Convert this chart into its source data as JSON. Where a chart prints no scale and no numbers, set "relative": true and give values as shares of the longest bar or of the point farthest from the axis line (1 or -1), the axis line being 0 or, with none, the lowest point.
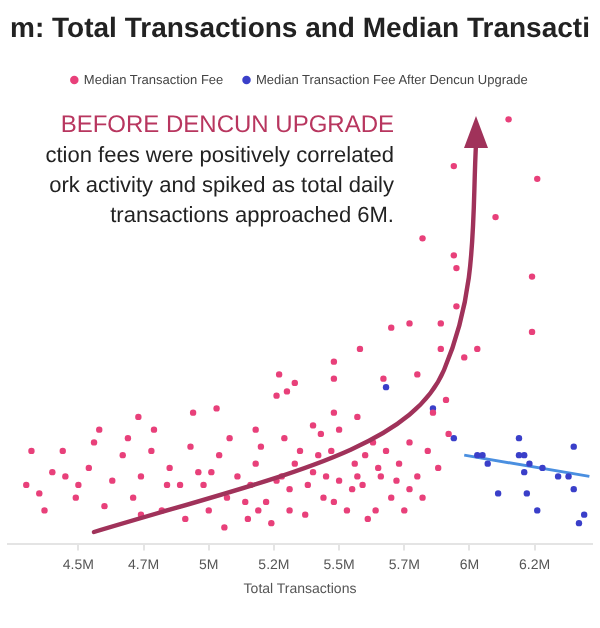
{
  "chart_data": {
    "type": "scatter",
    "title": "m: Total Transactions and Median Transacti",
    "xlabel": "Total Transactions",
    "annotations": [
      "BEFORE DENCUN UPGRADE",
      "ction fees were positively correlated",
      "ork activity and spiked as total daily",
      "transactions approached 6M."
    ],
    "relative": true,
    "xlim": [
      4.23,
      6.47
    ],
    "xticks": [
      {
        "value": 4.5,
        "label": "4.5M"
      },
      {
        "value": 4.75,
        "label": "4.7M"
      },
      {
        "value": 5,
        "label": "5M"
      },
      {
        "value": 5.25,
        "label": "5.2M"
      },
      {
        "value": 5.5,
        "label": "5.5M"
      },
      {
        "value": 5.75,
        "label": "5.7M"
      },
      {
        "value": 6,
        "label": "6M"
      },
      {
        "value": 6.25,
        "label": "6.2M"
      }
    ],
    "legend": "top",
    "marker": "circle",
    "series": [
      {
        "name": "Median Transaction Fee",
        "color": "#e8407a",
        "x": [
          6.15,
          5.94,
          6.26,
          6.1,
          5.82,
          5.94,
          5.95,
          6.24,
          5.95,
          5.77,
          5.89,
          6.24,
          5.7,
          5.89,
          5.58,
          5.98,
          5.48,
          6.03,
          5.8,
          5.27,
          5.48,
          5.67,
          5.33,
          5.3,
          5.26,
          5.91,
          5.86,
          4.94,
          4.73,
          5.03,
          5.48,
          5.57,
          4.58,
          4.79,
          5.4,
          5.18,
          4.32,
          4.44,
          4.56,
          4.78,
          4.3,
          4.35,
          4.37,
          4.45,
          4.49,
          4.54,
          4.63,
          4.71,
          4.74,
          4.82,
          4.89,
          4.96,
          5.0,
          5.04,
          5.07,
          5.11,
          5.15,
          5.18,
          5.22,
          5.24,
          5.28,
          5.31,
          5.35,
          5.37,
          5.4,
          5.44,
          5.47,
          5.5,
          5.53,
          5.56,
          5.59,
          5.63,
          5.66,
          5.7,
          5.73,
          5.77,
          5.8,
          5.84,
          5.92,
          5.77,
          4.67,
          4.85,
          4.93,
          5.08,
          5.2,
          5.29,
          5.43,
          5.5,
          5.6,
          5.68,
          4.74,
          4.6,
          4.91,
          5.06,
          5.14,
          5.26,
          5.33,
          5.38,
          5.48,
          5.57,
          5.64,
          5.72,
          5.82,
          5.88,
          4.69,
          4.98,
          5.01,
          5.16,
          5.31,
          5.42,
          5.55,
          5.65,
          5.75,
          4.4,
          4.5,
          4.84,
          5.19,
          5.45,
          5.61
        ],
        "values": [
          1.0,
          0.89,
          0.86,
          0.77,
          0.72,
          0.68,
          0.65,
          0.63,
          0.56,
          0.52,
          0.52,
          0.5,
          0.51,
          0.46,
          0.46,
          0.44,
          0.43,
          0.46,
          0.4,
          0.4,
          0.39,
          0.39,
          0.38,
          0.36,
          0.35,
          0.34,
          0.31,
          0.31,
          0.3,
          0.32,
          0.31,
          0.3,
          0.27,
          0.27,
          0.28,
          0.27,
          0.22,
          0.22,
          0.24,
          0.22,
          0.14,
          0.12,
          0.08,
          0.16,
          0.11,
          0.18,
          0.15,
          0.11,
          0.16,
          0.08,
          0.14,
          0.17,
          0.08,
          0.21,
          0.11,
          0.16,
          0.06,
          0.19,
          0.1,
          0.05,
          0.16,
          0.13,
          0.22,
          0.07,
          0.17,
          0.11,
          0.22,
          0.15,
          0.08,
          0.19,
          0.14,
          0.24,
          0.16,
          0.11,
          0.19,
          0.13,
          0.16,
          0.22,
          0.26,
          0.24,
          0.21,
          0.18,
          0.23,
          0.25,
          0.23,
          0.25,
          0.26,
          0.27,
          0.21,
          0.22,
          0.07,
          0.09,
          0.06,
          0.04,
          0.1,
          0.15,
          0.19,
          0.14,
          0.1,
          0.16,
          0.08,
          0.15,
          0.11,
          0.18,
          0.25,
          0.14,
          0.17,
          0.14,
          0.08,
          0.21,
          0.13,
          0.18,
          0.08,
          0.17,
          0.14,
          0.14,
          0.08,
          0.16,
          0.06
        ]
      },
      {
        "name": "Median Transaction Fee After Dencun Upgrade",
        "color": "#3a3fc9",
        "x": [
          5.68,
          5.86,
          5.94,
          6.03,
          6.05,
          6.07,
          6.19,
          6.19,
          6.21,
          6.21,
          6.23,
          6.28,
          6.11,
          6.22,
          6.26,
          6.34,
          6.4,
          6.4,
          6.44,
          6.42,
          6.38
        ],
        "values": [
          0.37,
          0.32,
          0.25,
          0.21,
          0.21,
          0.19,
          0.25,
          0.21,
          0.21,
          0.17,
          0.19,
          0.18,
          0.12,
          0.12,
          0.08,
          0.16,
          0.23,
          0.13,
          0.07,
          0.05,
          0.16
        ]
      },
      {
        "type": "line",
        "marker": "none",
        "color": "#4a8fe0",
        "x": [
          5.98,
          6.46
        ],
        "values": [
          0.21,
          0.16
        ]
      }
    ]
  }
}
